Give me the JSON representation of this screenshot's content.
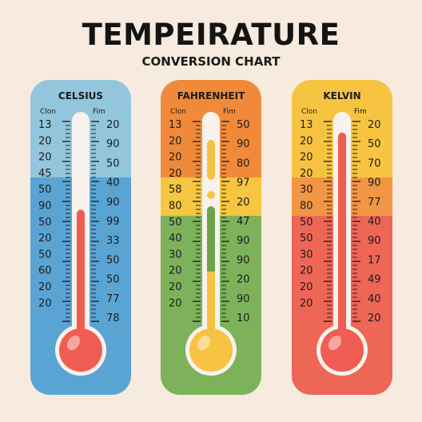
{
  "title": "TEMPEIRATURE",
  "subtitle": "CONVERSION CHART",
  "thermometers": [
    {
      "name": "CELSIUS",
      "left_header": "Clon",
      "right_header": "Fim",
      "left_values": [
        "13",
        "20",
        "20",
        "45",
        "50",
        "90",
        "50",
        "20",
        "50",
        "60",
        "20",
        "20"
      ],
      "right_values": [
        "20",
        "90",
        "50",
        "40",
        "90",
        "99",
        "33",
        "50",
        "50",
        "77",
        "78"
      ],
      "colors": {
        "top": "#93c6dc",
        "bottom": "#5aa4d3",
        "mercury": "#ef5d52"
      },
      "mercury_fill": 0.6
    },
    {
      "name": "FAHRENHEIT",
      "left_header": "Clon",
      "right_header": "Fim",
      "left_values": [
        "13",
        "20",
        "20",
        "20",
        "58",
        "80",
        "50",
        "40",
        "30",
        "20",
        "20",
        "20"
      ],
      "right_values": [
        "50",
        "90",
        "80",
        "97",
        "20",
        "47",
        "90",
        "90",
        "20",
        "90",
        "10"
      ],
      "colors": {
        "top": "#f08a3a",
        "band": "#f7c641",
        "bottom": "#7db25b",
        "mercury": "#f6c342"
      },
      "mercury_fill": 0.32
    },
    {
      "name": "KELVIN",
      "left_header": "Clon",
      "right_header": "Fim",
      "left_values": [
        "13",
        "20",
        "20",
        "20",
        "30",
        "80",
        "50",
        "50",
        "30",
        "20",
        "20",
        "20"
      ],
      "right_values": [
        "20",
        "50",
        "70",
        "90",
        "77",
        "40",
        "90",
        "17",
        "49",
        "40",
        "20"
      ],
      "colors": {
        "top": "#f7c441",
        "band": "#f29645",
        "bottom": "#ee6655",
        "mercury": "#ef5d52"
      },
      "mercury_fill": 0.95
    }
  ]
}
